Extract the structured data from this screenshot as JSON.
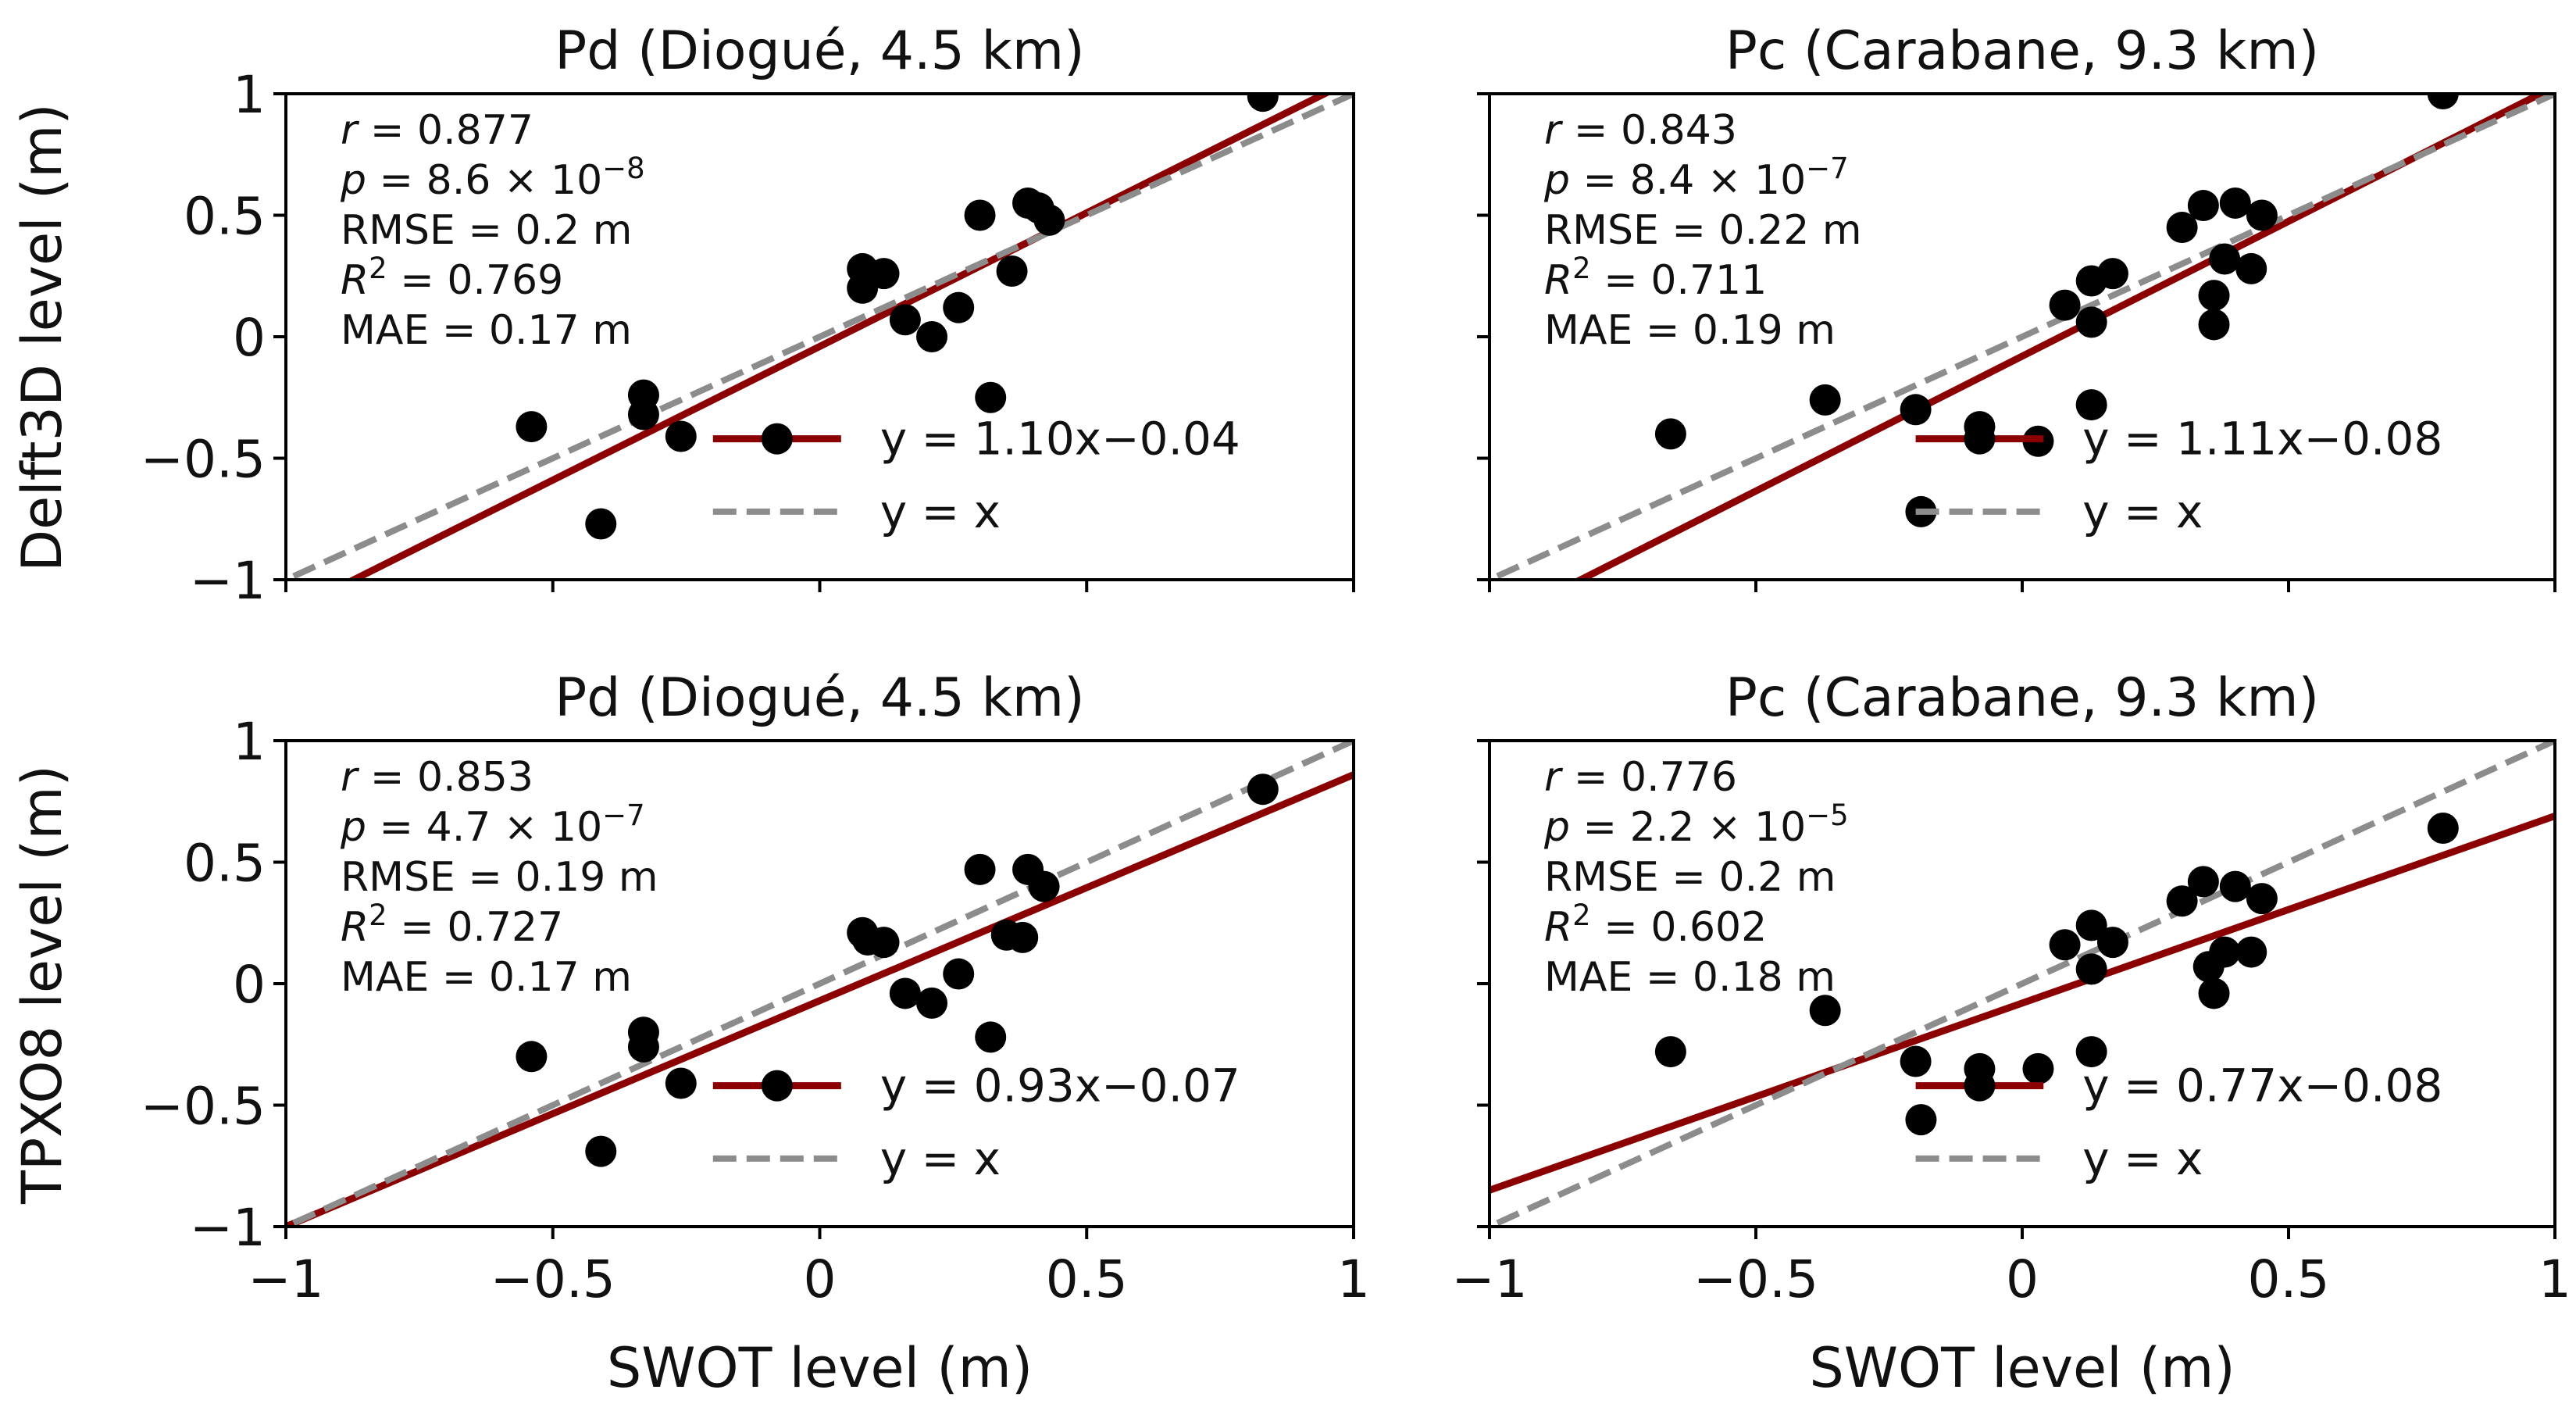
{
  "figure": {
    "x_axis_label": "SWOT level (m)",
    "row_y_labels": [
      "Delft3D level (m)",
      "TPXO8 level (m)"
    ],
    "colors": {
      "fit": "#8b0000",
      "identity": "#8c8c8c",
      "points": "#000000",
      "axes": "#000000"
    }
  },
  "chart_data": [
    {
      "type": "scatter",
      "title": "Pd (Diogué, 4.5 km)",
      "xlabel": "",
      "ylabel": "Delft3D level (m)",
      "xlim": [
        -1,
        1
      ],
      "ylim": [
        -1,
        1
      ],
      "xticks": [
        -1,
        -0.5,
        0,
        0.5,
        1
      ],
      "yticks": [
        -1,
        -0.5,
        0,
        0.5,
        1
      ],
      "xtick_labels": [
        "",
        "",
        "",
        "",
        ""
      ],
      "ytick_labels": [
        "−1",
        "−0.5",
        "0",
        "0.5",
        "1"
      ],
      "points": [
        [
          -0.54,
          -0.37
        ],
        [
          -0.41,
          -0.77
        ],
        [
          -0.33,
          -0.24
        ],
        [
          -0.33,
          -0.32
        ],
        [
          -0.26,
          -0.41
        ],
        [
          0.08,
          0.28
        ],
        [
          0.08,
          0.2
        ],
        [
          0.12,
          0.26
        ],
        [
          0.16,
          0.07
        ],
        [
          0.21,
          0.0
        ],
        [
          0.26,
          0.12
        ],
        [
          0.3,
          0.5
        ],
        [
          0.32,
          -0.25
        ],
        [
          0.36,
          0.27
        ],
        [
          0.39,
          0.55
        ],
        [
          0.41,
          0.53
        ],
        [
          0.43,
          0.48
        ],
        [
          0.83,
          0.99
        ]
      ],
      "fit": {
        "slope": 1.1,
        "intercept": -0.04,
        "label": "y = 1.10x−0.04"
      },
      "identity_label": "y = x",
      "stats": {
        "r": "0.877",
        "p_mant": "8.6",
        "p_exp": "−8",
        "rmse": "0.2",
        "r2": "0.769",
        "mae": "0.17",
        "unit": "m"
      }
    },
    {
      "type": "scatter",
      "title": "Pc (Carabane, 9.3 km)",
      "xlabel": "",
      "ylabel": "",
      "xlim": [
        -1,
        1
      ],
      "ylim": [
        -1,
        1
      ],
      "xticks": [
        -1,
        -0.5,
        0,
        0.5,
        1
      ],
      "yticks": [
        -1,
        -0.5,
        0,
        0.5,
        1
      ],
      "xtick_labels": [
        "",
        "",
        "",
        "",
        ""
      ],
      "ytick_labels": [
        "",
        "",
        "",
        "",
        ""
      ],
      "points": [
        [
          -0.66,
          -0.4
        ],
        [
          -0.37,
          -0.26
        ],
        [
          -0.2,
          -0.3
        ],
        [
          -0.19,
          -0.72
        ],
        [
          -0.08,
          -0.37
        ],
        [
          0.03,
          -0.43
        ],
        [
          0.08,
          0.13
        ],
        [
          0.13,
          0.23
        ],
        [
          0.13,
          -0.28
        ],
        [
          0.13,
          0.06
        ],
        [
          0.17,
          0.26
        ],
        [
          0.3,
          0.45
        ],
        [
          0.34,
          0.54
        ],
        [
          0.36,
          0.17
        ],
        [
          0.36,
          0.05
        ],
        [
          0.38,
          0.32
        ],
        [
          0.4,
          0.55
        ],
        [
          0.43,
          0.28
        ],
        [
          0.45,
          0.5
        ],
        [
          0.79,
          1.0
        ]
      ],
      "fit": {
        "slope": 1.11,
        "intercept": -0.08,
        "label": "y = 1.11x−0.08"
      },
      "identity_label": "y = x",
      "stats": {
        "r": "0.843",
        "p_mant": "8.4",
        "p_exp": "−7",
        "rmse": "0.22",
        "r2": "0.711",
        "mae": "0.19",
        "unit": "m"
      }
    },
    {
      "type": "scatter",
      "title": "Pd (Diogué, 4.5 km)",
      "xlabel": "SWOT level (m)",
      "ylabel": "TPXO8 level (m)",
      "xlim": [
        -1,
        1
      ],
      "ylim": [
        -1,
        1
      ],
      "xticks": [
        -1,
        -0.5,
        0,
        0.5,
        1
      ],
      "yticks": [
        -1,
        -0.5,
        0,
        0.5,
        1
      ],
      "xtick_labels": [
        "−1",
        "−0.5",
        "0",
        "0.5",
        "1"
      ],
      "ytick_labels": [
        "−1",
        "−0.5",
        "0",
        "0.5",
        "1"
      ],
      "points": [
        [
          -0.54,
          -0.3
        ],
        [
          -0.41,
          -0.69
        ],
        [
          -0.33,
          -0.2
        ],
        [
          -0.33,
          -0.26
        ],
        [
          -0.26,
          -0.41
        ],
        [
          0.08,
          0.21
        ],
        [
          0.09,
          0.18
        ],
        [
          0.12,
          0.17
        ],
        [
          0.16,
          -0.04
        ],
        [
          0.21,
          -0.08
        ],
        [
          0.26,
          0.04
        ],
        [
          0.3,
          0.47
        ],
        [
          0.32,
          -0.22
        ],
        [
          0.35,
          0.2
        ],
        [
          0.38,
          0.19
        ],
        [
          0.39,
          0.47
        ],
        [
          0.42,
          0.4
        ],
        [
          0.83,
          0.8
        ]
      ],
      "fit": {
        "slope": 0.93,
        "intercept": -0.07,
        "label": "y = 0.93x−0.07"
      },
      "identity_label": "y = x",
      "stats": {
        "r": "0.853",
        "p_mant": "4.7",
        "p_exp": "−7",
        "rmse": "0.19",
        "r2": "0.727",
        "mae": "0.17",
        "unit": "m"
      }
    },
    {
      "type": "scatter",
      "title": "Pc (Carabane, 9.3 km)",
      "xlabel": "SWOT level (m)",
      "ylabel": "",
      "xlim": [
        -1,
        1
      ],
      "ylim": [
        -1,
        1
      ],
      "xticks": [
        -1,
        -0.5,
        0,
        0.5,
        1
      ],
      "yticks": [
        -1,
        -0.5,
        0,
        0.5,
        1
      ],
      "xtick_labels": [
        "−1",
        "−0.5",
        "0",
        "0.5",
        "1"
      ],
      "ytick_labels": [
        "",
        "",
        "",
        "",
        ""
      ],
      "points": [
        [
          -0.66,
          -0.28
        ],
        [
          -0.37,
          -0.11
        ],
        [
          -0.2,
          -0.32
        ],
        [
          -0.19,
          -0.56
        ],
        [
          -0.08,
          -0.35
        ],
        [
          0.03,
          -0.35
        ],
        [
          0.08,
          0.16
        ],
        [
          0.13,
          0.24
        ],
        [
          0.13,
          -0.28
        ],
        [
          0.13,
          0.06
        ],
        [
          0.17,
          0.17
        ],
        [
          0.3,
          0.34
        ],
        [
          0.34,
          0.42
        ],
        [
          0.35,
          0.07
        ],
        [
          0.36,
          -0.04
        ],
        [
          0.38,
          0.13
        ],
        [
          0.4,
          0.4
        ],
        [
          0.43,
          0.13
        ],
        [
          0.45,
          0.35
        ],
        [
          0.79,
          0.64
        ]
      ],
      "fit": {
        "slope": 0.77,
        "intercept": -0.08,
        "label": "y = 0.77x−0.08"
      },
      "identity_label": "y = x",
      "stats": {
        "r": "0.776",
        "p_mant": "2.2",
        "p_exp": "−5",
        "rmse": "0.2",
        "r2": "0.602",
        "mae": "0.18",
        "unit": "m"
      }
    }
  ]
}
